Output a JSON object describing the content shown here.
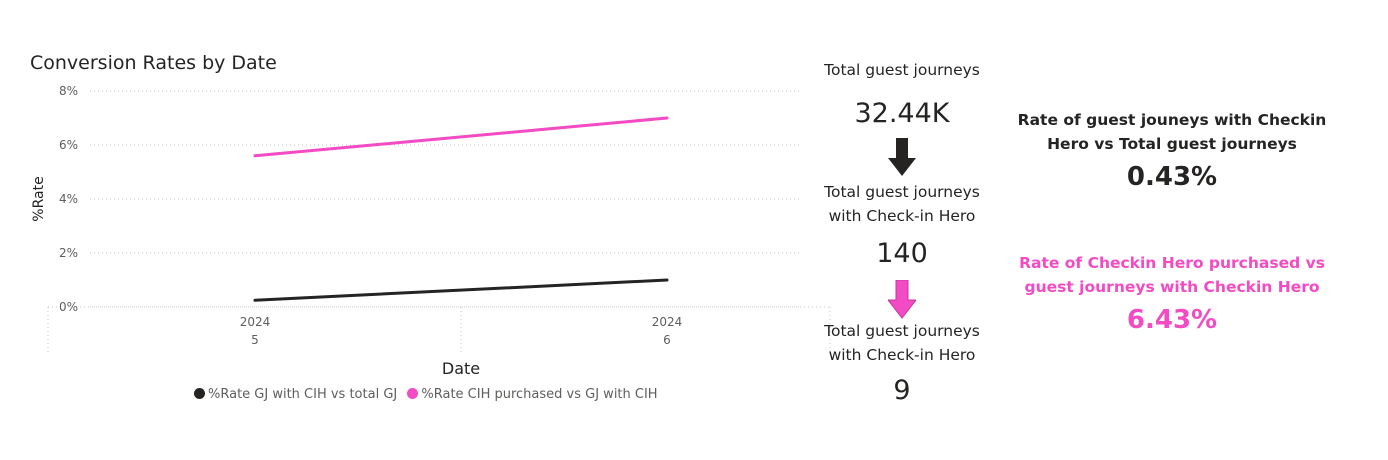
{
  "chart_data": {
    "type": "line",
    "title": "Conversion Rates by Date",
    "xlabel": "Date",
    "ylabel": "%Rate",
    "categories": [
      [
        "2024",
        "5"
      ],
      [
        "2024",
        "6"
      ]
    ],
    "yticks": [
      "0%",
      "2%",
      "4%",
      "6%",
      "8%"
    ],
    "ylim": [
      0,
      8
    ],
    "grid": true,
    "legend_position": "bottom",
    "series": [
      {
        "name": "%Rate GJ with CIH vs total GJ",
        "values": [
          0.25,
          1.0
        ],
        "color": "#252423"
      },
      {
        "name": "%Rate CIH purchased vs GJ with CIH",
        "values": [
          5.6,
          7.0
        ],
        "color": "#f24bc3"
      }
    ]
  },
  "cards": [
    {
      "label_lines": [
        "Total guest journeys"
      ],
      "value": "32.44K"
    },
    {
      "label_lines": [
        "Total guest journeys",
        "with Check-in Hero"
      ],
      "value": "140"
    },
    {
      "label_lines": [
        "Total guest journeys",
        "with Check-in Hero"
      ],
      "value": "9"
    }
  ],
  "arrows": [
    {
      "icon": "arrow-down-icon",
      "color": "#252423"
    },
    {
      "icon": "arrow-down-icon",
      "color": "#f24bc3"
    }
  ],
  "kpis": [
    {
      "label_lines": [
        "Rate of guest jouneys with Checkin",
        "Hero vs Total guest journeys"
      ],
      "value": "0.43%",
      "color": "#252423"
    },
    {
      "label_lines": [
        "Rate of Checkin Hero purchased vs",
        "guest journeys with Checkin Hero"
      ],
      "value": "6.43%",
      "color": "#f24bc3"
    }
  ]
}
